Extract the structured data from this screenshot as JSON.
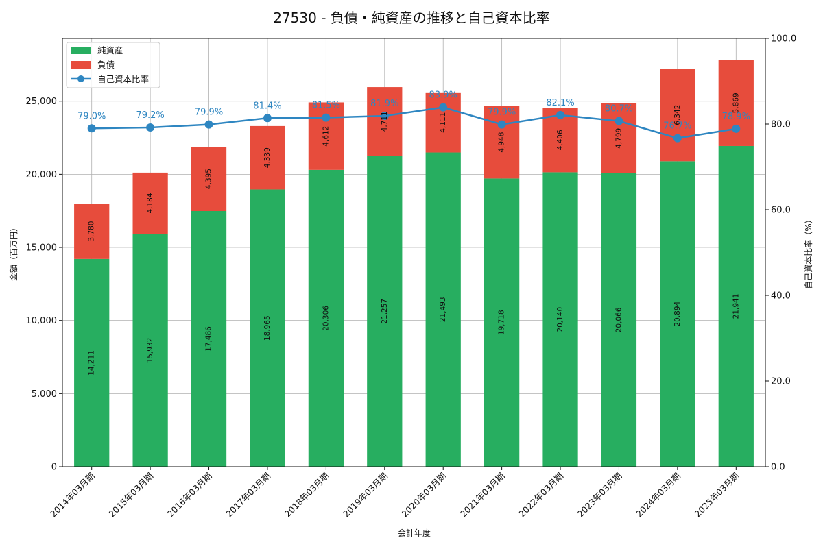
{
  "chart_data": {
    "type": "bar",
    "title": "27530 - 負債・純資産の推移と自己資本比率",
    "xlabel": "会計年度",
    "ylabel": "金額（百万円）",
    "y2label": "自己資本比率（%）",
    "stacked": true,
    "grid": true,
    "legend_position": "top-left",
    "categories": [
      "2014年03月期",
      "2015年03月期",
      "2016年03月期",
      "2017年03月期",
      "2018年03月期",
      "2019年03月期",
      "2020年03月期",
      "2021年03月期",
      "2022年03月期",
      "2023年03月期",
      "2024年03月期",
      "2025年03月期"
    ],
    "ylim": [
      0,
      29300
    ],
    "y_ticks": [
      "0",
      "5,000",
      "10,000",
      "15,000",
      "20,000",
      "25,000"
    ],
    "y_tick_values": [
      0,
      5000,
      10000,
      15000,
      20000,
      25000
    ],
    "y2lim": [
      0,
      100
    ],
    "y2_ticks": [
      "0.0",
      "20.0",
      "40.0",
      "60.0",
      "80.0",
      "100.0"
    ],
    "y2_tick_values": [
      0,
      20,
      40,
      60,
      80,
      100
    ],
    "series": [
      {
        "name": "純資産",
        "kind": "bar",
        "axis": "left",
        "color": "#27ae60",
        "values": [
          14211,
          15932,
          17486,
          18965,
          20306,
          21257,
          21493,
          19718,
          20140,
          20066,
          20894,
          21941
        ],
        "labels": [
          "14,211",
          "15,932",
          "17,486",
          "18,965",
          "20,306",
          "21,257",
          "21,493",
          "19,718",
          "20,140",
          "20,066",
          "20,894",
          "21,941"
        ]
      },
      {
        "name": "負債",
        "kind": "bar",
        "axis": "left",
        "color": "#e74c3c",
        "values": [
          3780,
          4184,
          4395,
          4339,
          4612,
          4711,
          4111,
          4948,
          4406,
          4799,
          6342,
          5869
        ],
        "labels": [
          "3,780",
          "4,184",
          "4,395",
          "4,339",
          "4,612",
          "4,711",
          "4,111",
          "4,948",
          "4,406",
          "4,799",
          "6,342",
          "5,869"
        ]
      },
      {
        "name": "自己資本比率",
        "kind": "line",
        "axis": "right",
        "color": "#2e86c1",
        "values": [
          79.0,
          79.2,
          79.9,
          81.4,
          81.5,
          81.9,
          83.9,
          79.9,
          82.1,
          80.7,
          76.7,
          78.9
        ],
        "labels": [
          "79.0%",
          "79.2%",
          "79.9%",
          "81.4%",
          "81.5%",
          "81.9%",
          "83.9%",
          "79.9%",
          "82.1%",
          "80.7%",
          "76.7%",
          "78.9%"
        ]
      }
    ]
  }
}
